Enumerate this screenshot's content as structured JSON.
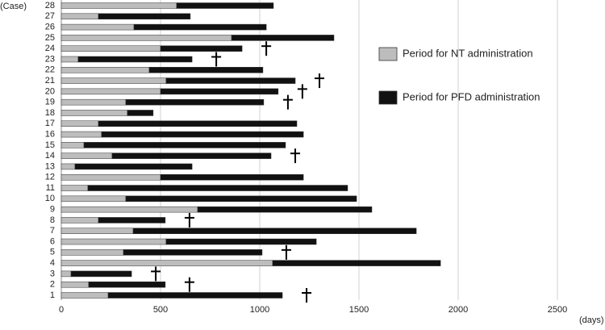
{
  "chart_data": {
    "type": "stacked-barh",
    "ylabel": "(Case)",
    "xlabel": "(days)",
    "categories": [
      "1",
      "2",
      "3",
      "4",
      "5",
      "6",
      "7",
      "8",
      "9",
      "10",
      "11",
      "12",
      "13",
      "14",
      "15",
      "16",
      "17",
      "18",
      "19",
      "20",
      "21",
      "22",
      "23",
      "24",
      "25",
      "26",
      "27",
      "28"
    ],
    "series": [
      {
        "name": "Period for NT administration",
        "color": "#bdbdbd",
        "values": [
          236,
          138,
          49,
          1065,
          313,
          528,
          362,
          187,
          687,
          325,
          134,
          500,
          69,
          256,
          114,
          203,
          187,
          333,
          325,
          500,
          528,
          443,
          85,
          500,
          858,
          366,
          187,
          581
        ]
      },
      {
        "name": "Period for PFD administration",
        "color": "#111111",
        "values": [
          878,
          386,
          305,
          846,
          699,
          757,
          1427,
          337,
          878,
          1163,
          1309,
          720,
          590,
          801,
          1016,
          1017,
          1000,
          130,
          695,
          593,
          651,
          573,
          574,
          411,
          516,
          667,
          463,
          488
        ]
      }
    ],
    "marked": [
      true,
      true,
      true,
      false,
      true,
      false,
      false,
      true,
      false,
      false,
      false,
      false,
      false,
      true,
      false,
      false,
      false,
      false,
      true,
      true,
      true,
      false,
      true,
      true,
      false,
      false,
      false,
      false
    ],
    "xlim": [
      0,
      2500
    ],
    "xticks": [
      0,
      500,
      1000,
      1500,
      2000,
      2500
    ],
    "grid": true
  }
}
